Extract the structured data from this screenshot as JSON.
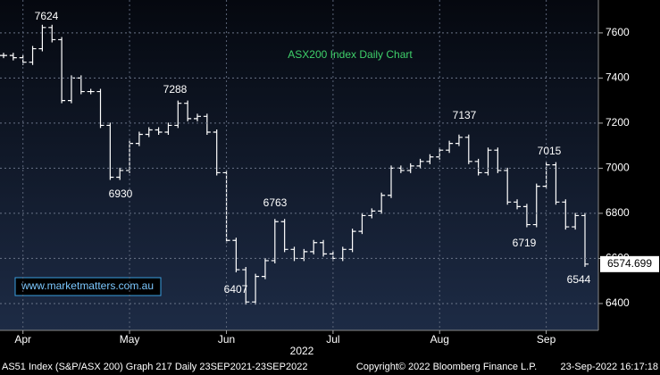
{
  "chart_data": {
    "type": "line",
    "title": "ASX200 Index Daily Chart",
    "watermark": "www.marketmatters.com.au",
    "x_axis_label": "2022",
    "footer_left": "AS51 Index (S&P/ASX 200) Graph 217  Daily 23SEP2021-23SEP2022",
    "footer_center": "Copyright© 2022 Bloomberg Finance L.P.",
    "footer_right": "23-Sep-2022 16:17:18",
    "annotations": [
      "7624",
      "7288",
      "6930",
      "6407",
      "6763",
      "7137",
      "7015",
      "6719",
      "6544"
    ],
    "categories": [
      null,
      null,
      "Apr",
      null,
      null,
      null,
      null,
      null,
      null,
      null,
      null,
      null,
      null,
      "May",
      null,
      null,
      null,
      null,
      null,
      null,
      null,
      null,
      null,
      "Jun",
      null,
      null,
      null,
      null,
      null,
      null,
      null,
      null,
      null,
      null,
      "Jul",
      null,
      null,
      null,
      null,
      null,
      null,
      null,
      null,
      null,
      null,
      "Aug",
      null,
      null,
      null,
      null,
      null,
      null,
      null,
      null,
      null,
      null,
      "Sep",
      null,
      null,
      null,
      null
    ],
    "series": [
      {
        "name": "AS51 Index",
        "color": "#ffffff",
        "values": [
          7500,
          7490,
          7470,
          7530,
          7624,
          7570,
          7300,
          7400,
          7340,
          7340,
          7190,
          6960,
          6990,
          7110,
          7150,
          7170,
          7160,
          7190,
          7288,
          7220,
          7230,
          7160,
          6980,
          6680,
          6550,
          6407,
          6520,
          6590,
          6763,
          6640,
          6600,
          6630,
          6670,
          6620,
          6600,
          6640,
          6720,
          6790,
          6810,
          6880,
          7000,
          6990,
          7010,
          7030,
          7050,
          7080,
          7110,
          7137,
          7030,
          6980,
          7080,
          6990,
          6850,
          6830,
          6750,
          6920,
          7015,
          6850,
          6740,
          6790,
          6574.699
        ]
      }
    ],
    "ylim": [
      6281,
      7746
    ],
    "yticks": [
      6400,
      6600,
      6800,
      7000,
      7200,
      7400,
      7600
    ],
    "grid": true
  }
}
